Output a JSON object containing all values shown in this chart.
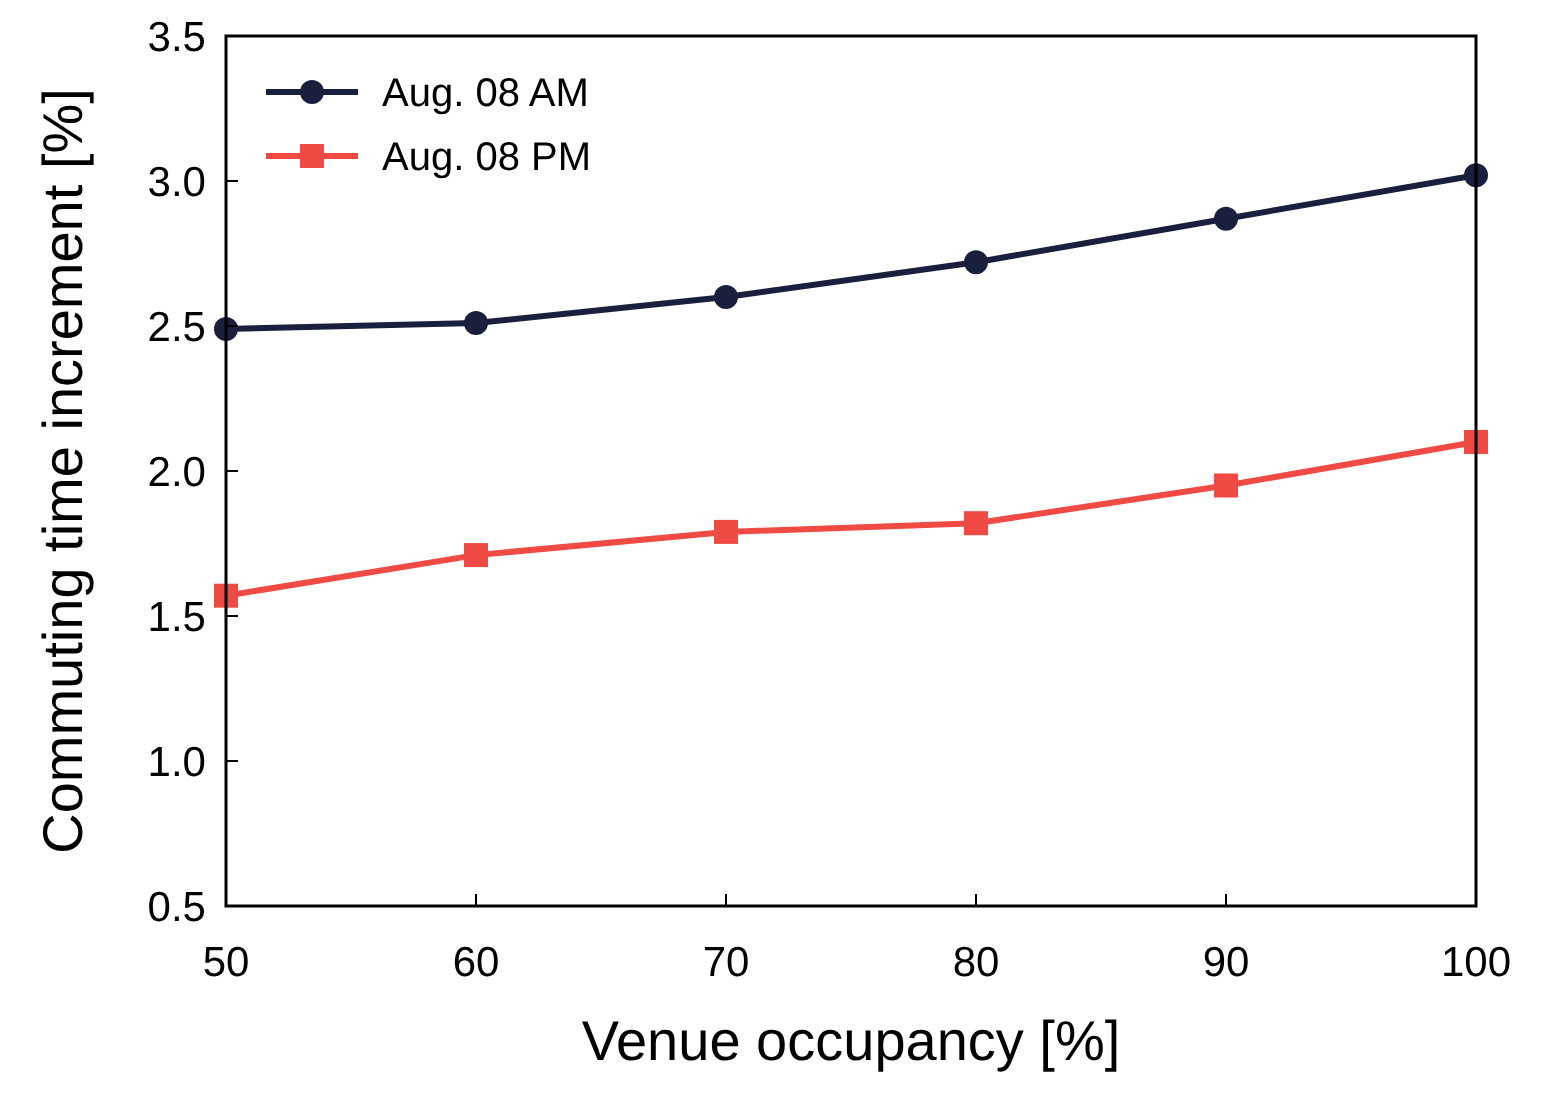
{
  "chart_data": {
    "type": "line",
    "xlabel": "Venue occupancy [%]",
    "ylabel": "Commuting time increment [%]",
    "x": [
      50,
      60,
      70,
      80,
      90,
      100
    ],
    "series": [
      {
        "name": "Aug. 08 AM",
        "color": "#1a1f3d",
        "marker": "circle",
        "values": [
          2.49,
          2.51,
          2.6,
          2.72,
          2.87,
          3.02
        ]
      },
      {
        "name": "Aug. 08 PM",
        "color": "#f04a45",
        "marker": "square",
        "values": [
          1.57,
          1.71,
          1.79,
          1.82,
          1.95,
          2.1
        ]
      }
    ],
    "xlim": [
      50,
      100
    ],
    "xticks": [
      50,
      60,
      70,
      80,
      90,
      100
    ],
    "ylim": [
      0.5,
      3.5
    ],
    "yticks": [
      {
        "value": 0.5,
        "label": "0.5"
      },
      {
        "value": 1,
        "label": "1.0"
      },
      {
        "value": 1.5,
        "label": "1.5"
      },
      {
        "value": 2,
        "label": "2.0"
      },
      {
        "value": 2.5,
        "label": "2.5"
      },
      {
        "value": 3,
        "label": "3.0"
      },
      {
        "value": 3.5,
        "label": "3.5"
      }
    ],
    "grid": false,
    "legend": "top left",
    "line_style": "solid"
  }
}
